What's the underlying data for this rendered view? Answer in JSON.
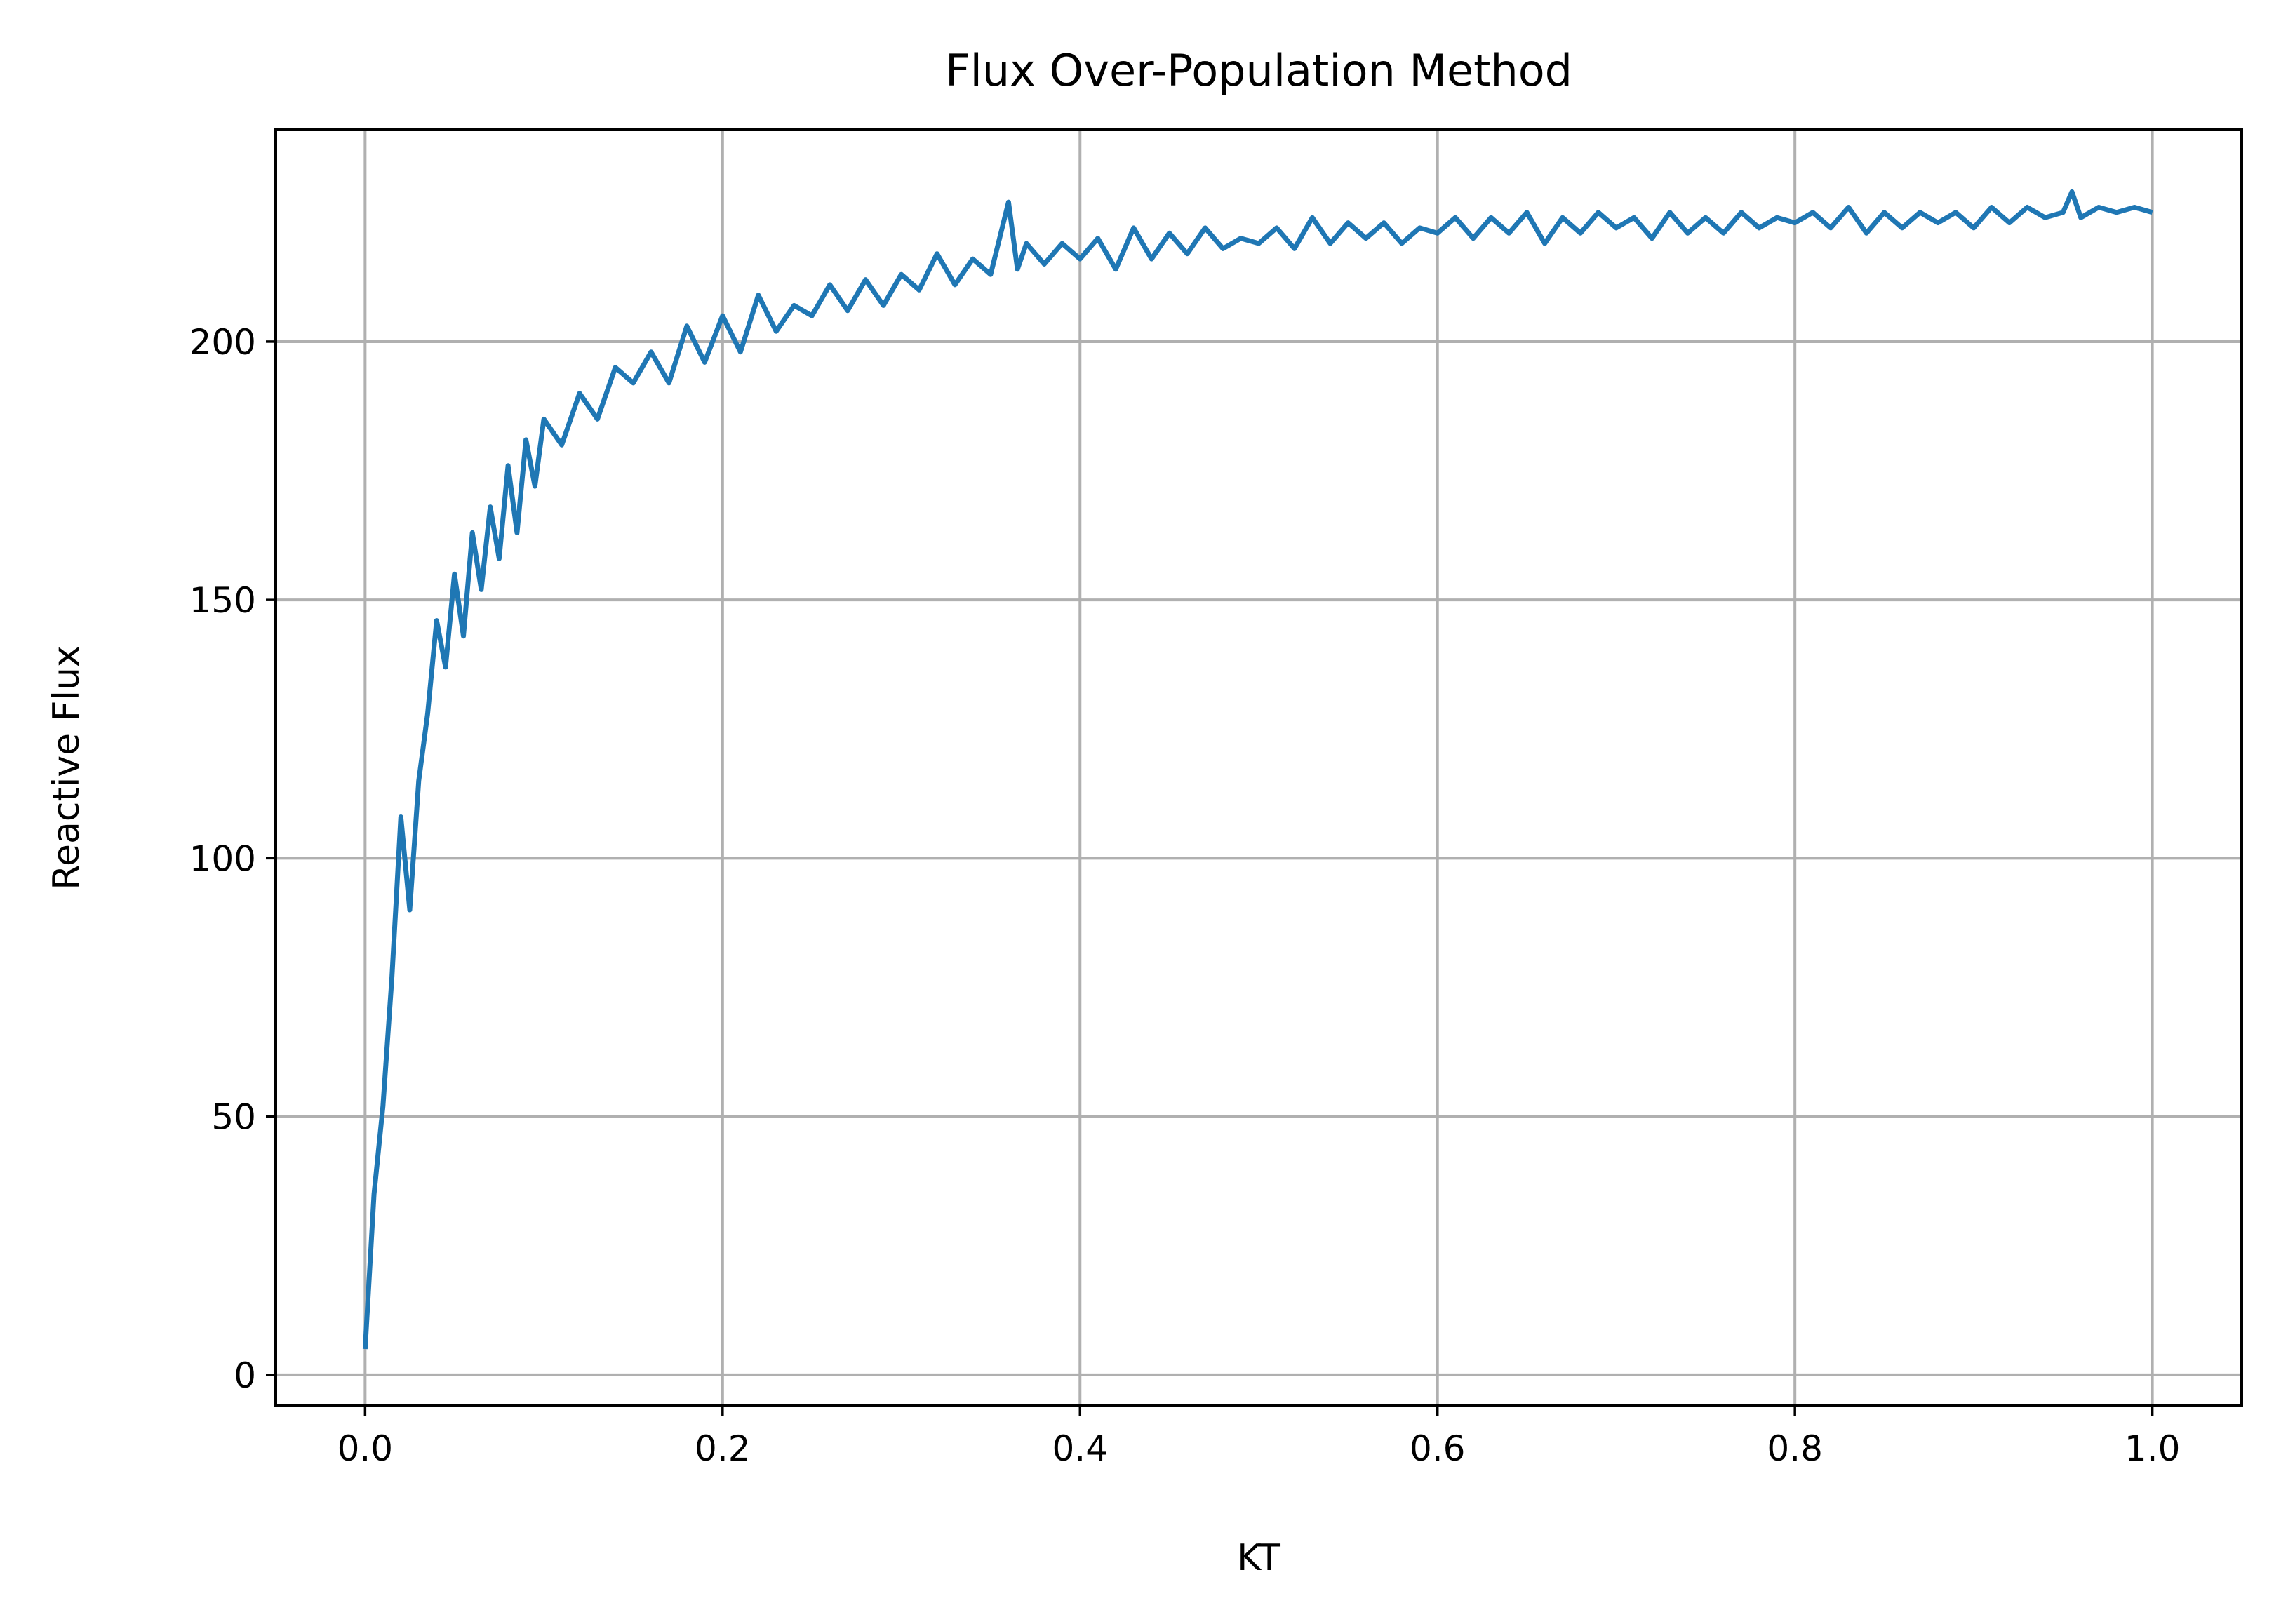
{
  "chart_data": {
    "type": "line",
    "title": "Flux Over-Population Method",
    "xlabel": "KT",
    "ylabel": "Reactive Flux",
    "xlim": [
      -0.05,
      1.05
    ],
    "ylim": [
      -6,
      241
    ],
    "xticks": [
      0.0,
      0.2,
      0.4,
      0.6,
      0.8,
      1.0
    ],
    "xtick_labels": [
      "0.0",
      "0.2",
      "0.4",
      "0.6",
      "0.8",
      "1.0"
    ],
    "yticks": [
      0,
      50,
      100,
      150,
      200
    ],
    "ytick_labels": [
      "0",
      "50",
      "100",
      "150",
      "200"
    ],
    "grid": true,
    "legend": "none",
    "series_color": "#1f77b4",
    "series": [
      {
        "x": [
          0.0,
          0.005,
          0.01,
          0.015,
          0.02,
          0.025,
          0.03,
          0.035,
          0.04,
          0.045,
          0.05,
          0.055,
          0.06,
          0.065,
          0.07,
          0.075,
          0.08,
          0.085,
          0.09,
          0.095,
          0.1,
          0.11,
          0.12,
          0.13,
          0.14,
          0.15,
          0.16,
          0.17,
          0.18,
          0.19,
          0.2,
          0.21,
          0.22,
          0.23,
          0.24,
          0.25,
          0.26,
          0.27,
          0.28,
          0.29,
          0.3,
          0.31,
          0.32,
          0.33,
          0.34,
          0.35,
          0.36,
          0.365,
          0.37,
          0.38,
          0.39,
          0.4,
          0.41,
          0.42,
          0.43,
          0.44,
          0.45,
          0.46,
          0.47,
          0.48,
          0.49,
          0.5,
          0.51,
          0.52,
          0.53,
          0.54,
          0.55,
          0.56,
          0.57,
          0.58,
          0.59,
          0.6,
          0.61,
          0.62,
          0.63,
          0.64,
          0.65,
          0.66,
          0.67,
          0.68,
          0.69,
          0.7,
          0.71,
          0.72,
          0.73,
          0.74,
          0.75,
          0.76,
          0.77,
          0.78,
          0.79,
          0.8,
          0.81,
          0.82,
          0.83,
          0.84,
          0.85,
          0.86,
          0.87,
          0.88,
          0.89,
          0.9,
          0.91,
          0.92,
          0.93,
          0.94,
          0.95,
          0.955,
          0.96,
          0.97,
          0.98,
          0.99,
          1.0
        ],
        "y": [
          5,
          35,
          52,
          77,
          108,
          90,
          115,
          128,
          146,
          137,
          155,
          143,
          163,
          152,
          168,
          158,
          176,
          163,
          181,
          172,
          185,
          180,
          190,
          185,
          195,
          192,
          198,
          192,
          203,
          196,
          205,
          198,
          209,
          202,
          207,
          205,
          211,
          206,
          212,
          207,
          213,
          210,
          217,
          211,
          216,
          213,
          227,
          214,
          219,
          215,
          219,
          216,
          220,
          214,
          222,
          216,
          221,
          217,
          222,
          218,
          220,
          219,
          222,
          218,
          224,
          219,
          223,
          220,
          223,
          219,
          222,
          221,
          224,
          220,
          224,
          221,
          225,
          219,
          224,
          221,
          225,
          222,
          224,
          220,
          225,
          221,
          224,
          221,
          225,
          222,
          224,
          223,
          225,
          222,
          226,
          221,
          225,
          222,
          225,
          223,
          225,
          222,
          226,
          223,
          226,
          224,
          225,
          229,
          224,
          226,
          225,
          226,
          225
        ]
      }
    ]
  }
}
